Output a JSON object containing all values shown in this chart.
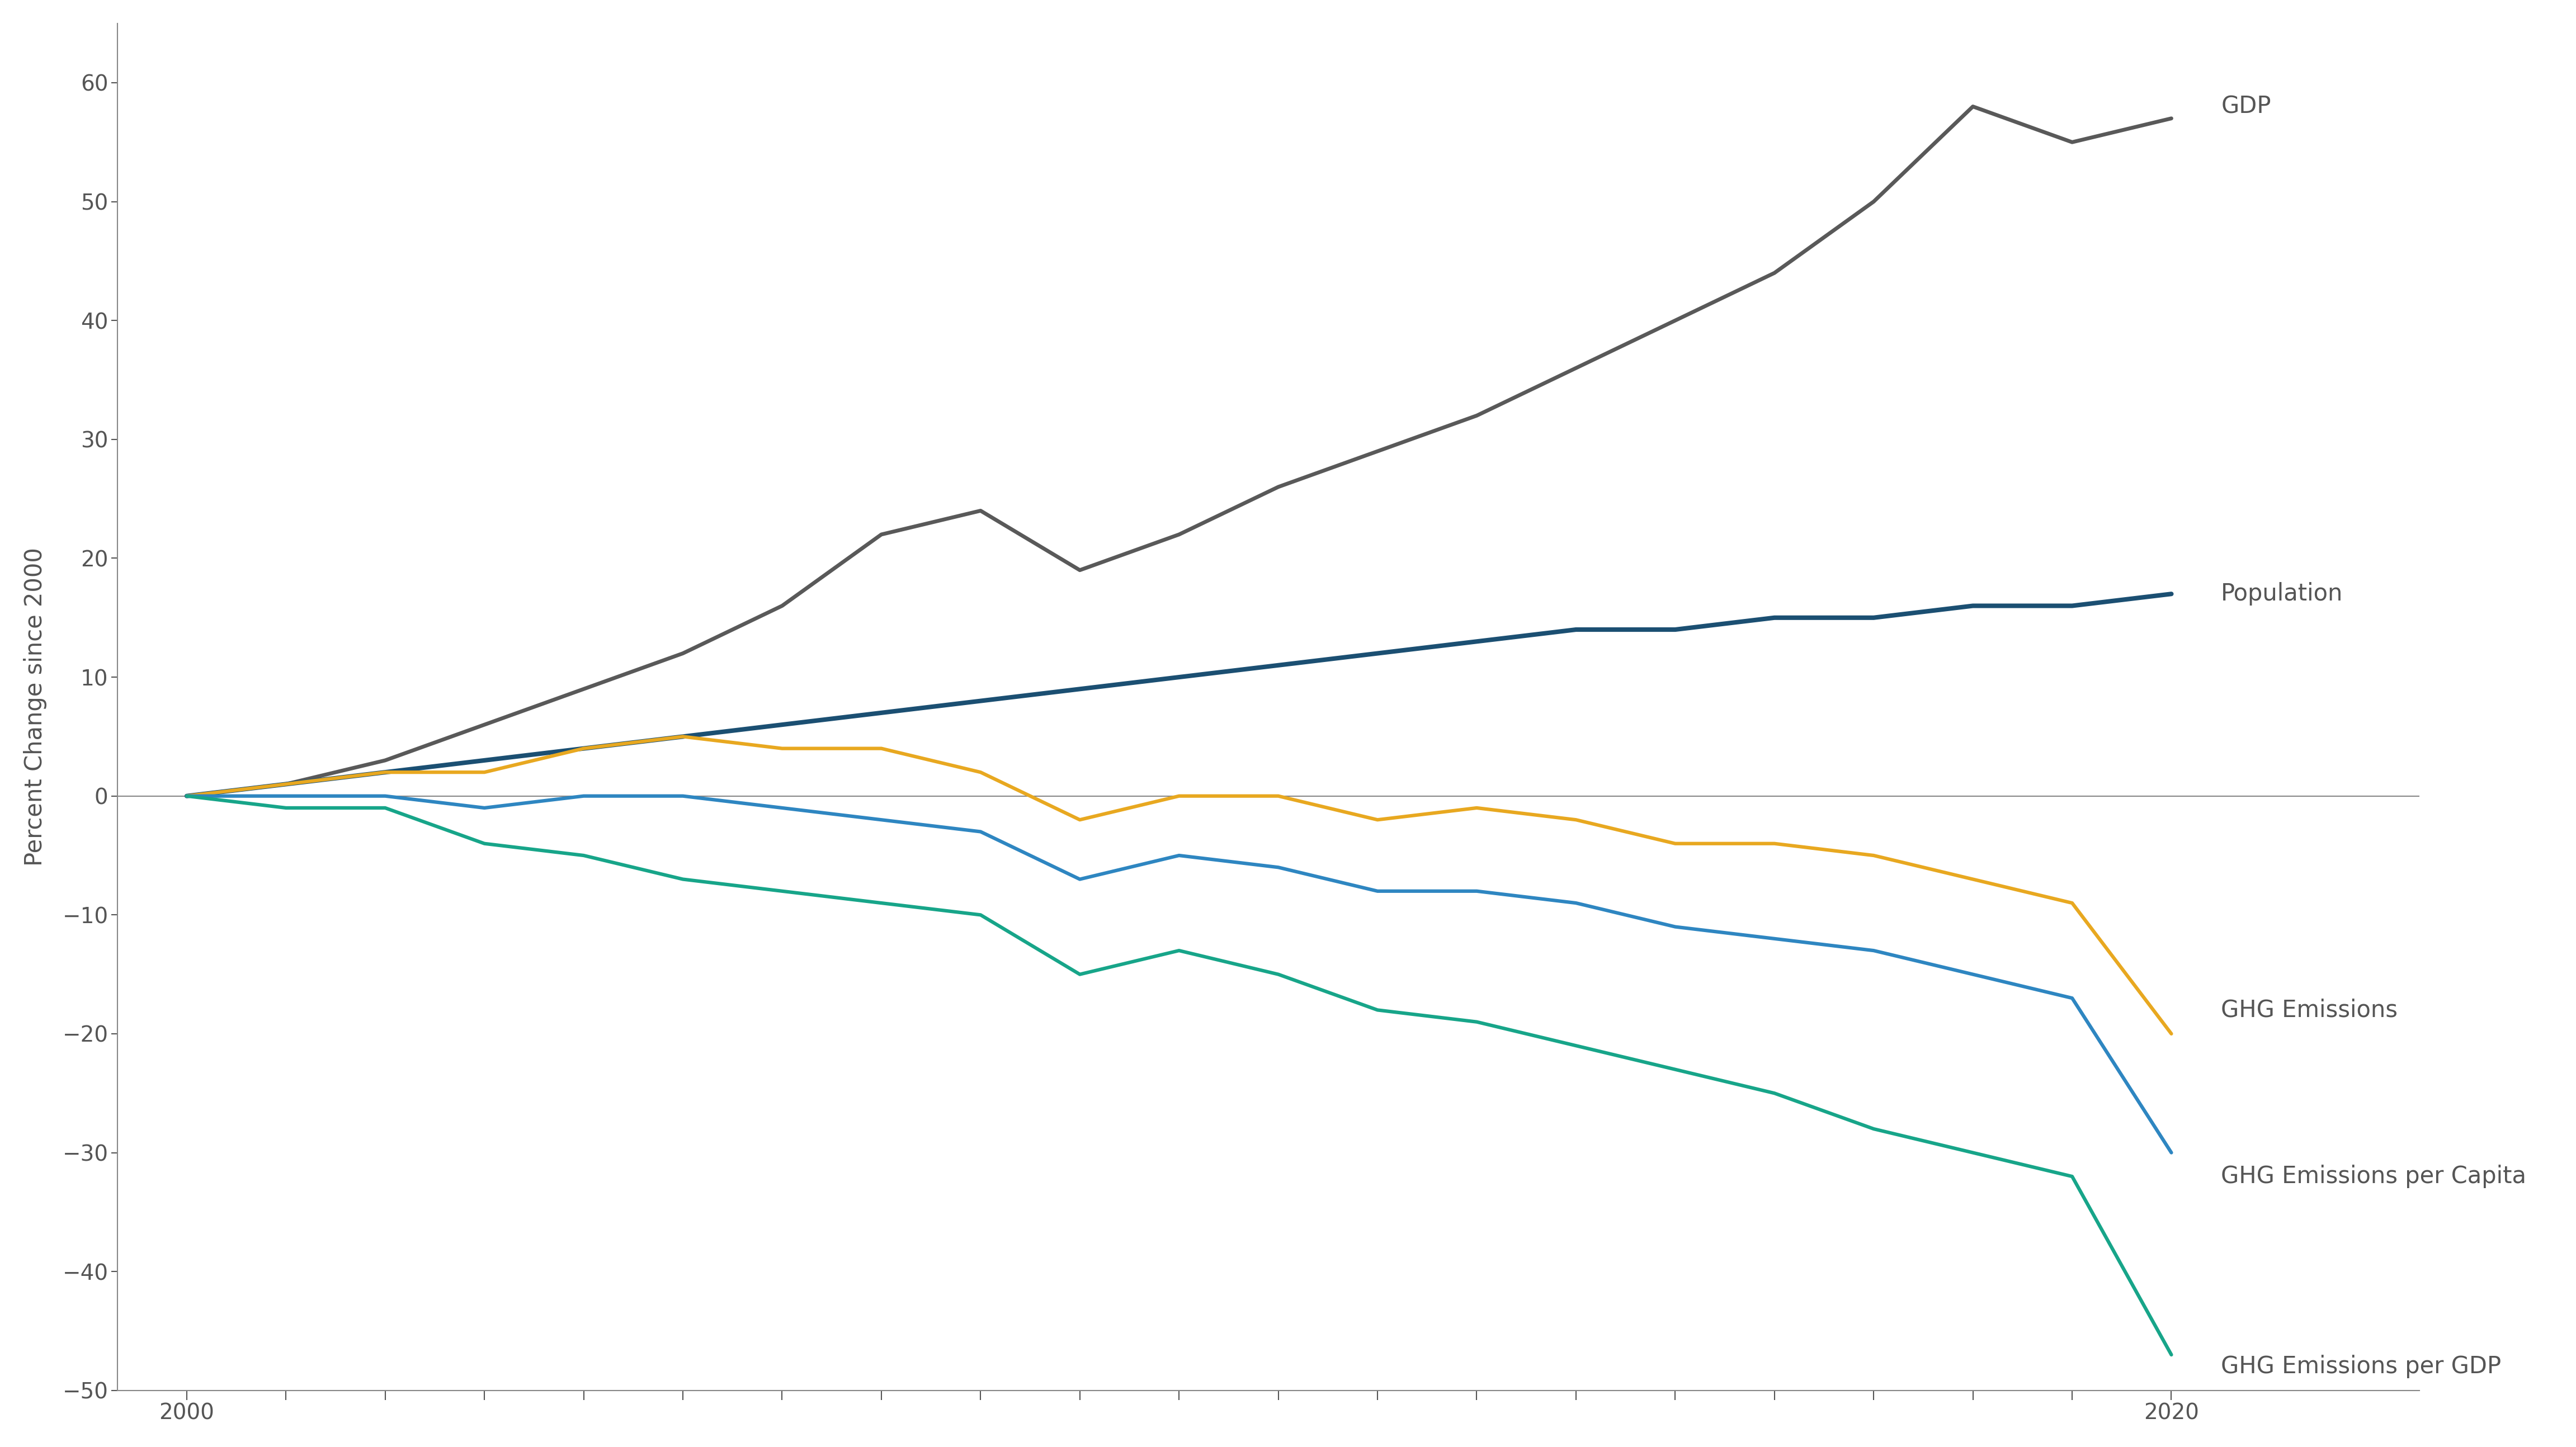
{
  "years": [
    2000,
    2001,
    2002,
    2003,
    2004,
    2005,
    2006,
    2007,
    2008,
    2009,
    2010,
    2011,
    2012,
    2013,
    2014,
    2015,
    2016,
    2017,
    2018,
    2019,
    2020
  ],
  "gdp": [
    0,
    1,
    3,
    6,
    9,
    12,
    16,
    22,
    24,
    19,
    22,
    26,
    29,
    32,
    36,
    40,
    44,
    50,
    58,
    55,
    57
  ],
  "population": [
    0,
    1,
    2,
    3,
    4,
    5,
    6,
    7,
    8,
    9,
    10,
    11,
    12,
    13,
    14,
    14,
    15,
    15,
    16,
    16,
    17
  ],
  "ghg_emissions": [
    0,
    1,
    2,
    2,
    4,
    5,
    4,
    4,
    2,
    -2,
    0,
    0,
    -2,
    -1,
    -2,
    -4,
    -4,
    -5,
    -7,
    -9,
    -20
  ],
  "ghg_per_capita": [
    0,
    0,
    0,
    -1,
    0,
    0,
    -1,
    -2,
    -3,
    -7,
    -5,
    -6,
    -8,
    -8,
    -9,
    -11,
    -12,
    -13,
    -15,
    -17,
    -30
  ],
  "ghg_per_gdp": [
    0,
    -1,
    -1,
    -4,
    -5,
    -7,
    -8,
    -9,
    -10,
    -15,
    -13,
    -15,
    -18,
    -19,
    -21,
    -23,
    -25,
    -28,
    -30,
    -32,
    -47
  ],
  "colors": {
    "gdp": "#595959",
    "population": "#1b4f72",
    "ghg_emissions": "#e8a820",
    "ghg_per_capita": "#2e86c1",
    "ghg_per_gdp": "#17a589"
  },
  "labels": {
    "gdp": "GDP",
    "population": "Population",
    "ghg_emissions": "GHG Emissions",
    "ghg_per_capita": "GHG Emissions per Capita",
    "ghg_per_gdp": "GHG Emissions per GDP"
  },
  "ylabel": "Percent Change since 2000",
  "ylim": [
    -50,
    65
  ],
  "yticks": [
    -50,
    -40,
    -30,
    -20,
    -10,
    0,
    10,
    20,
    30,
    40,
    50,
    60
  ],
  "xlim": [
    1999.3,
    2022.5
  ],
  "xtick_positions": [
    2000,
    2001,
    2002,
    2003,
    2004,
    2005,
    2006,
    2007,
    2008,
    2009,
    2010,
    2011,
    2012,
    2013,
    2014,
    2015,
    2016,
    2017,
    2018,
    2019,
    2020
  ],
  "xtick_labels_show": [
    2000,
    2020
  ],
  "background_color": "#ffffff",
  "linewidth": 4.5,
  "label_fontsize": 30,
  "tick_fontsize": 28,
  "ylabel_fontsize": 30
}
